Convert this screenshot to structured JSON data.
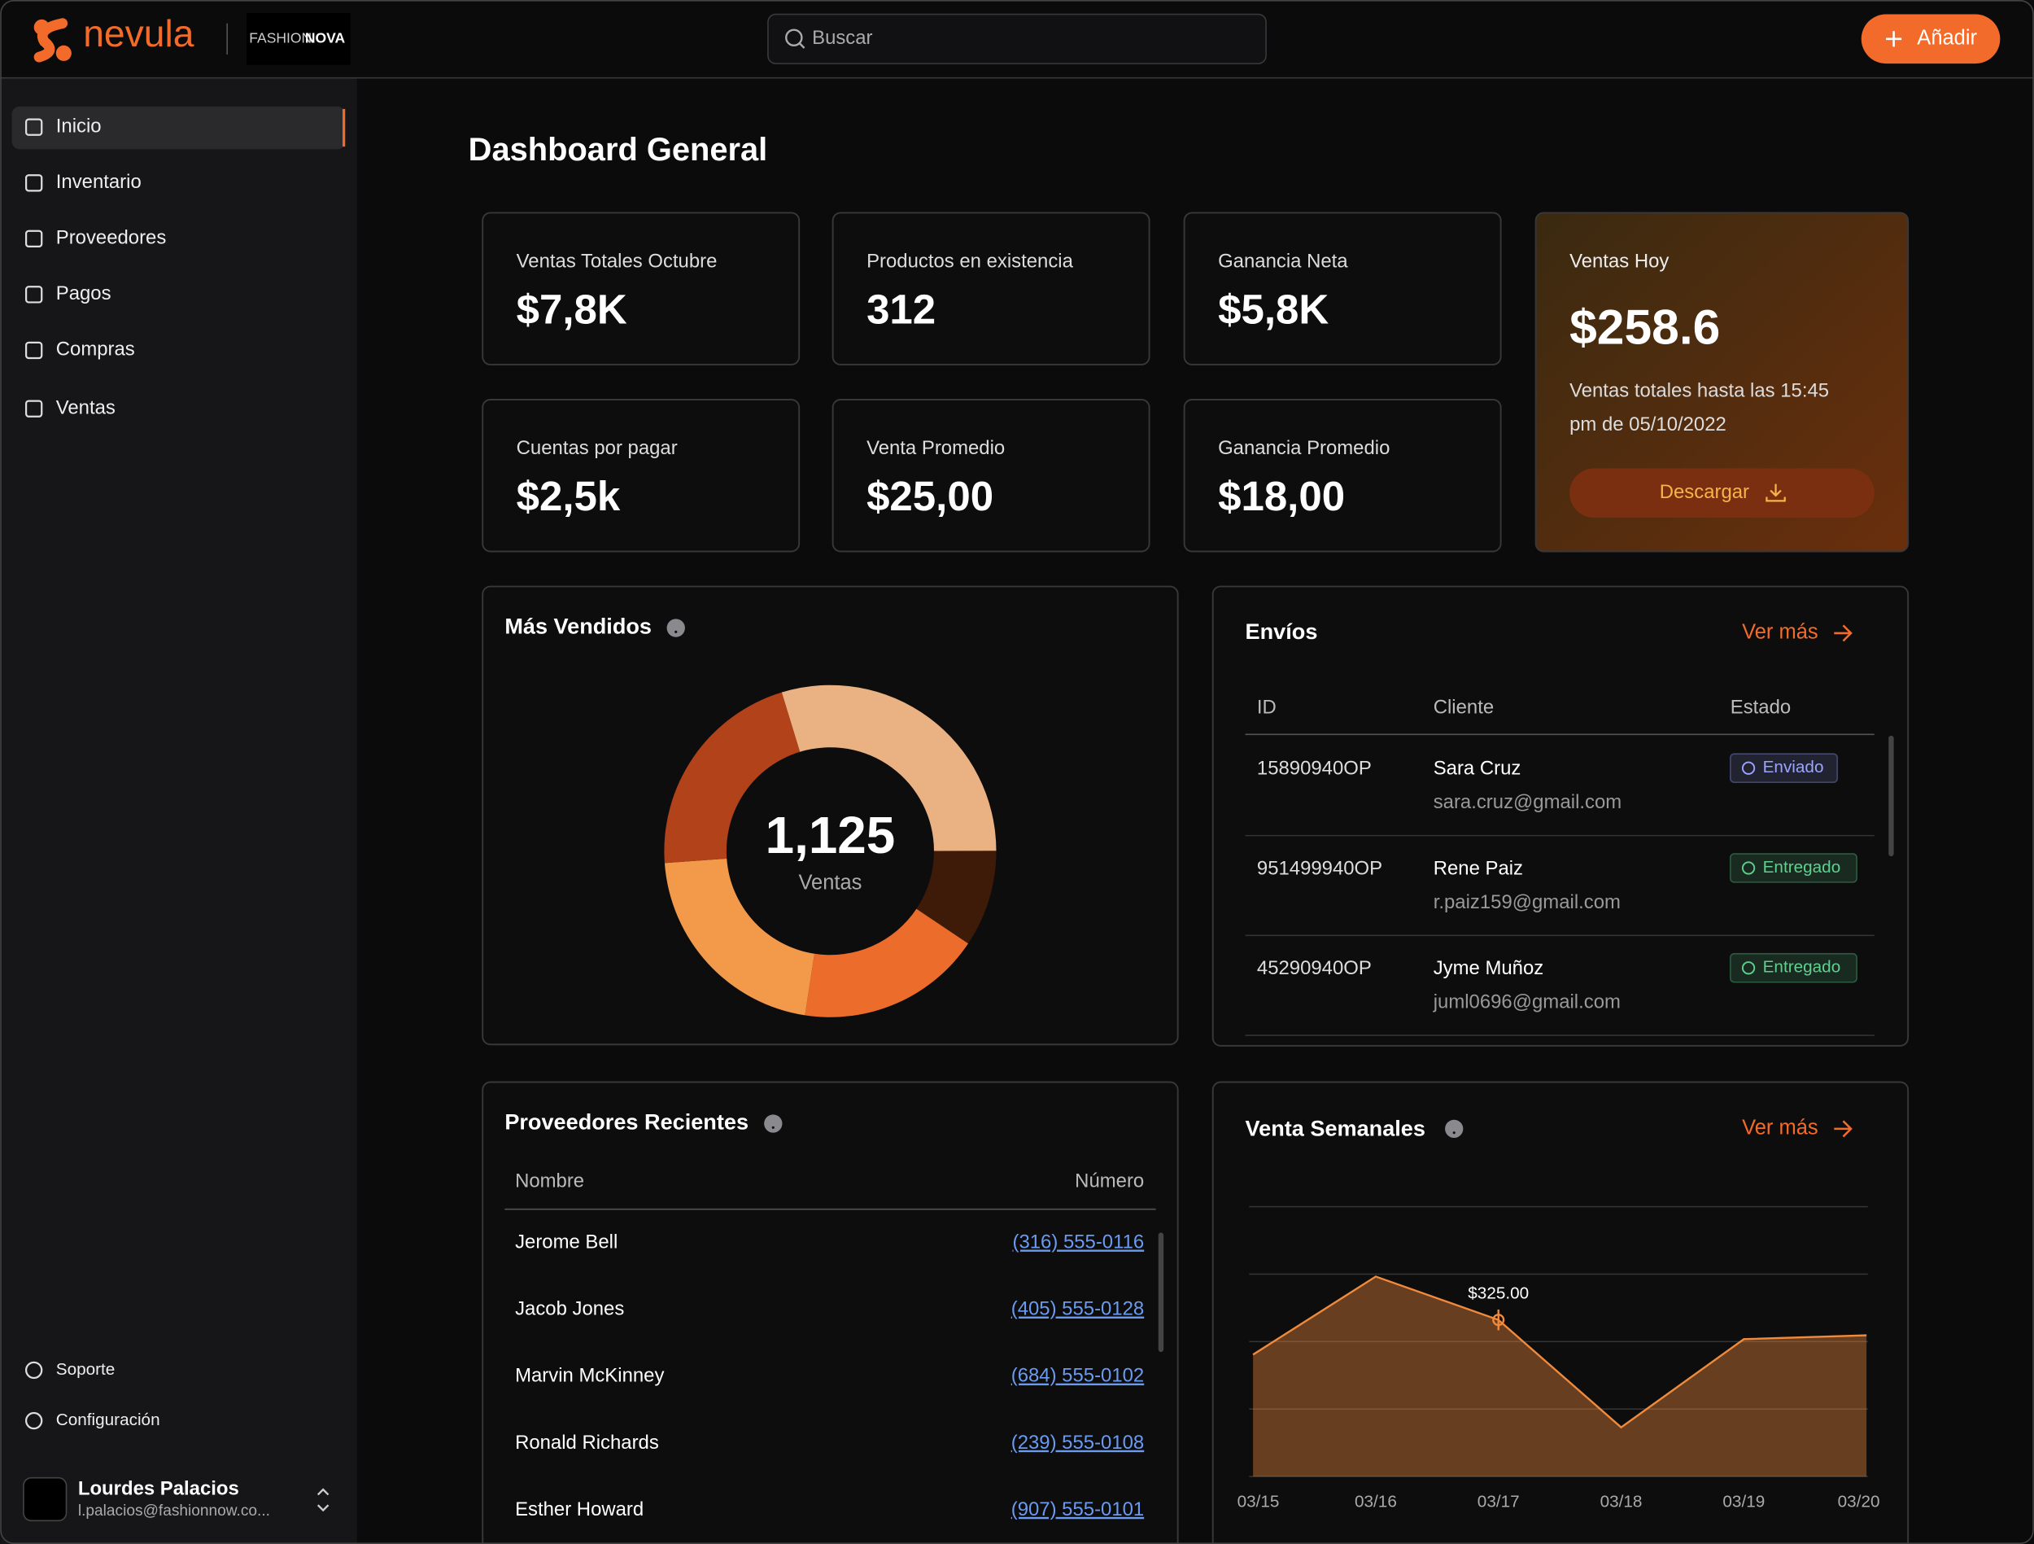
{
  "header": {
    "brand": "nevula",
    "partner": [
      "FASHION",
      "NOVA"
    ],
    "search_placeholder": "Buscar",
    "add_button": "Añadir"
  },
  "nav": [
    "Inicio",
    "Inventario",
    "Proveedores",
    "Pagos",
    "Compras",
    "Ventas"
  ],
  "footer_nav": [
    "Soporte",
    "Configuración"
  ],
  "user": {
    "name": "Lourdes Palacios",
    "email": "l.palacios@fashionnow.co..."
  },
  "title": "Dashboard General",
  "stats": [
    {
      "label": "Ventas Totales Octubre",
      "value": "$7,8K"
    },
    {
      "label": "Productos en existencia",
      "value": "312"
    },
    {
      "label": "Ganancia Neta",
      "value": "$5,8K"
    },
    {
      "label": "Cuentas por pagar",
      "value": "$2,5k"
    },
    {
      "label": "Venta Promedio",
      "value": "$25,00"
    },
    {
      "label": "Ganancia Promedio",
      "value": "$18,00"
    }
  ],
  "today": {
    "label": "Ventas Hoy",
    "value": "$258.6",
    "note_lines": [
      "Ventas totales hasta las 15:45",
      "pm de 05/10/2022"
    ],
    "button": "Descargar"
  },
  "chart_data": [
    {
      "type": "pie",
      "title": "Más Vendidos",
      "center_value": "1,125",
      "center_label": "Ventas",
      "values": [
        334,
        106,
        203,
        241,
        241
      ],
      "colors": [
        "#eab283",
        "#3e1a08",
        "#ec6c2c",
        "#f39a4a",
        "#b1421a"
      ]
    },
    {
      "type": "line",
      "title": "Venta Semanales",
      "link": "Ver más",
      "categories": [
        "03/15",
        "03/16",
        "03/17",
        "03/18",
        "03/19",
        "03/20"
      ],
      "values": [
        253,
        415,
        325,
        102,
        285,
        293
      ],
      "value_labels": [
        null,
        null,
        "$325.00",
        null,
        null,
        null
      ],
      "ylim": [
        0,
        560
      ],
      "yticks": [
        0,
        140,
        280,
        420,
        560
      ],
      "grid": true,
      "color": "#f08a3c"
    }
  ],
  "shipments": {
    "title": "Envíos",
    "link": "Ver más",
    "columns": [
      "ID",
      "Cliente",
      "Estado"
    ],
    "rows": [
      {
        "id": "15890940OP",
        "name": "Sara Cruz",
        "email": "sara.cruz@gmail.com",
        "status": "Enviado",
        "status_color": "#9aa4ff"
      },
      {
        "id": "951499940OP",
        "name": "Rene Paiz",
        "email": "r.paiz159@gmail.com",
        "status": "Entregado",
        "status_color": "#5fd08f"
      },
      {
        "id": "45290940OP",
        "name": "Jyme Muñoz",
        "email": "juml0696@gmail.com",
        "status": "Entregado",
        "status_color": "#5fd08f"
      }
    ]
  },
  "suppliers": {
    "title": "Proveedores Recientes",
    "columns": [
      "Nombre",
      "Número"
    ],
    "rows": [
      [
        "Jerome Bell",
        "(316) 555-0116"
      ],
      [
        "Jacob Jones",
        "(405) 555-0128"
      ],
      [
        "Marvin McKinney",
        "(684) 555-0102"
      ],
      [
        "Ronald Richards",
        "(239) 555-0108"
      ],
      [
        "Esther Howard",
        "(907) 555-0101"
      ]
    ]
  }
}
